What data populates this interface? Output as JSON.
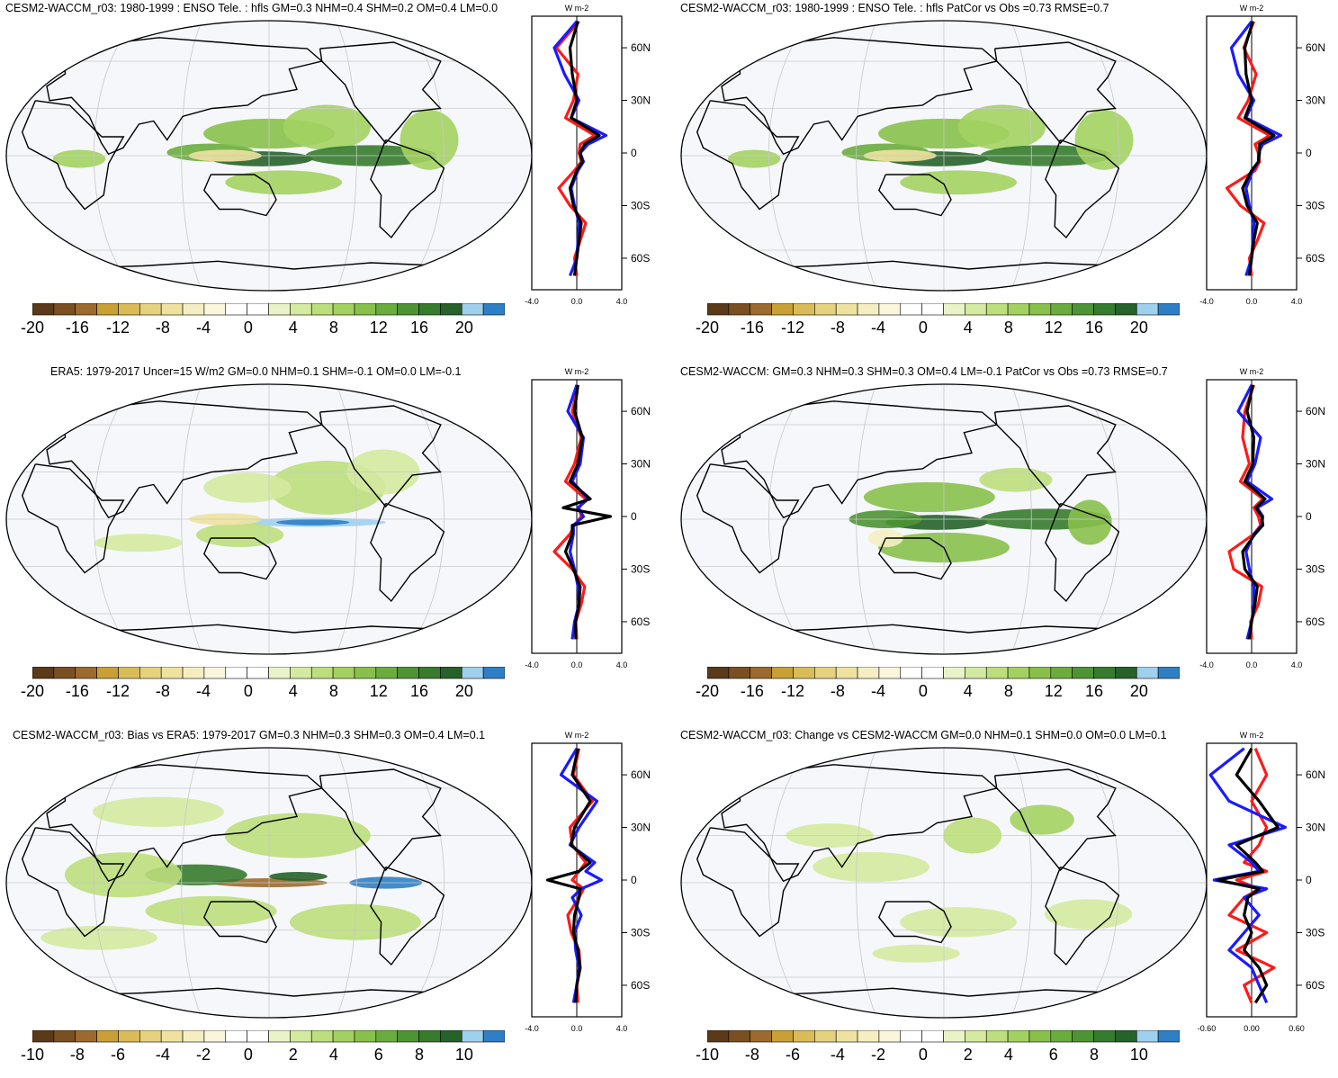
{
  "colors": {
    "brown_to_blue_ramp": [
      "#5b3a1a",
      "#7a4f22",
      "#9c6a2e",
      "#c8a035",
      "#d9bc58",
      "#e6d27e",
      "#efe2a0",
      "#f5eec2",
      "#faf6de",
      "#ffffff",
      "#ffffff",
      "#e9f3c8",
      "#d4eaa0",
      "#bcde7c",
      "#a3d161",
      "#88c04b",
      "#6aac3e",
      "#4e9434",
      "#377b2e",
      "#266229",
      "#9fd0ee",
      "#2f7fc6"
    ],
    "ocean": "#f6f7fb",
    "coast": "#000000",
    "grid": "#c8c8c8",
    "series_red": "#ff1a1a",
    "series_blue": "#1a1aff",
    "series_black": "#000000"
  },
  "units_label": "W m-2",
  "panels": [
    {
      "id": "p1",
      "title": "CESM2-WACCM_r03: 1980-1999 : ENSO Tele. : hfls GM=0.3 NHM=0.4 SHM=0.2 OM=0.4 LM=0.0",
      "colorbar_labels": [
        "-20",
        "-16",
        "-12",
        "-8",
        "-4",
        "0",
        "4",
        "8",
        "12",
        "16",
        "20"
      ],
      "profile_x_ticks": [
        "-4.0",
        "0.0",
        "4.0"
      ],
      "profile_x_range": [
        -4,
        4
      ],
      "lat_ticks": [
        "60N",
        "30N",
        "0",
        "30S",
        "60S"
      ]
    },
    {
      "id": "p2",
      "title": "CESM2-WACCM_r03: 1980-1999 : ENSO Tele. : hfls PatCor vs Obs =0.73 RMSE=0.7",
      "colorbar_labels": [
        "-20",
        "-16",
        "-12",
        "-8",
        "-4",
        "0",
        "4",
        "8",
        "12",
        "16",
        "20"
      ],
      "profile_x_ticks": [
        "-4.0",
        "0.0",
        "4.0"
      ],
      "profile_x_range": [
        -4,
        4
      ],
      "lat_ticks": [
        "60N",
        "30N",
        "0",
        "30S",
        "60S"
      ]
    },
    {
      "id": "p3",
      "title": "ERA5: 1979-2017 Uncer=15 W/m2 GM=0.0 NHM=0.1 SHM=-0.1 OM=0.0 LM=-0.1",
      "colorbar_labels": [
        "-20",
        "-16",
        "-12",
        "-8",
        "-4",
        "0",
        "4",
        "8",
        "12",
        "16",
        "20"
      ],
      "profile_x_ticks": [
        "-4.0",
        "0.0",
        "4.0"
      ],
      "profile_x_range": [
        -4,
        4
      ],
      "lat_ticks": [
        "60N",
        "30N",
        "0",
        "30S",
        "60S"
      ]
    },
    {
      "id": "p4",
      "title": "CESM2-WACCM: GM=0.3 NHM=0.3 SHM=0.3 OM=0.4 LM=-0.1 PatCor vs Obs =0.73 RMSE=0.7",
      "colorbar_labels": [
        "-20",
        "-16",
        "-12",
        "-8",
        "-4",
        "0",
        "4",
        "8",
        "12",
        "16",
        "20"
      ],
      "profile_x_ticks": [
        "-4.0",
        "0.0",
        "4.0"
      ],
      "profile_x_range": [
        -4,
        4
      ],
      "lat_ticks": [
        "60N",
        "30N",
        "0",
        "30S",
        "60S"
      ]
    },
    {
      "id": "p5",
      "title": "CESM2-WACCM_r03: Bias vs ERA5: 1979-2017 GM=0.3 NHM=0.3 SHM=0.3 OM=0.4 LM=0.1",
      "colorbar_labels": [
        "-10",
        "-8",
        "-6",
        "-4",
        "-2",
        "0",
        "2",
        "4",
        "6",
        "8",
        "10"
      ],
      "profile_x_ticks": [
        "-4.0",
        "0.0",
        "4.0"
      ],
      "profile_x_range": [
        -4,
        4
      ],
      "lat_ticks": [
        "60N",
        "30N",
        "0",
        "30S",
        "60S"
      ]
    },
    {
      "id": "p6",
      "title": "CESM2-WACCM_r03: Change vs CESM2-WACCM GM=0.0 NHM=0.1 SHM=0.0 OM=0.0 LM=0.1",
      "colorbar_labels": [
        "-10",
        "-8",
        "-6",
        "-4",
        "-2",
        "0",
        "2",
        "4",
        "6",
        "8",
        "10"
      ],
      "profile_x_ticks": [
        "-0.60",
        "0.00",
        "0.60"
      ],
      "profile_x_range": [
        -0.6,
        0.6
      ],
      "lat_ticks": [
        "60N",
        "30N",
        "0",
        "30S",
        "60S"
      ]
    }
  ],
  "chart_data": [
    {
      "type": "line",
      "panel": "p1",
      "title": "",
      "xlabel": "W m-2",
      "ylabel": "",
      "xlim": [
        -4,
        4
      ],
      "ylim": [
        -78,
        78
      ],
      "y": [
        75,
        60,
        45,
        30,
        20,
        10,
        5,
        0,
        -5,
        -10,
        -20,
        -30,
        -40,
        -50,
        -60,
        -70
      ],
      "series": [
        {
          "values": [
            0.2,
            -1.8,
            0.1,
            -0.3,
            -1.0,
            1.6,
            0.3,
            0.2,
            0.4,
            -0.2,
            -1.6,
            -0.6,
            0.8,
            0.3,
            -0.2,
            0.0
          ]
        },
        {
          "values": [
            0.0,
            -2.0,
            -1.1,
            0.2,
            -0.5,
            2.6,
            1.0,
            0.3,
            0.6,
            0.1,
            -0.5,
            -0.2,
            0.2,
            0.1,
            0.0,
            -0.6
          ]
        },
        {
          "values": [
            0.1,
            -0.6,
            -0.4,
            0.0,
            -0.5,
            2.0,
            0.7,
            0.3,
            0.5,
            0.0,
            -0.6,
            -0.3,
            0.4,
            0.2,
            0.0,
            -0.2
          ]
        }
      ]
    },
    {
      "type": "line",
      "panel": "p2",
      "title": "",
      "xlabel": "W m-2",
      "ylabel": "",
      "xlim": [
        -4,
        4
      ],
      "ylim": [
        -78,
        78
      ],
      "y": [
        75,
        60,
        45,
        30,
        20,
        10,
        5,
        0,
        -5,
        -10,
        -20,
        -30,
        -40,
        -50,
        -60,
        -70
      ],
      "series": [
        {
          "values": [
            0.2,
            -0.7,
            0.4,
            -0.3,
            -1.2,
            1.6,
            0.3,
            0.6,
            0.7,
            0.3,
            -2.2,
            -1.0,
            1.1,
            0.5,
            -0.2,
            0.0
          ]
        },
        {
          "values": [
            0.0,
            -1.8,
            -1.2,
            0.2,
            -0.5,
            2.6,
            1.0,
            0.6,
            0.6,
            0.1,
            -0.5,
            -0.2,
            0.2,
            0.1,
            0.0,
            -0.5
          ]
        },
        {
          "values": [
            0.1,
            -0.6,
            -0.5,
            0.0,
            -0.6,
            2.0,
            0.7,
            0.7,
            0.6,
            0.0,
            -0.8,
            -0.4,
            0.5,
            0.2,
            0.0,
            -0.2
          ]
        }
      ]
    },
    {
      "type": "line",
      "panel": "p3",
      "title": "",
      "xlabel": "W m-2",
      "ylabel": "",
      "xlim": [
        -4,
        4
      ],
      "ylim": [
        -78,
        78
      ],
      "y": [
        75,
        60,
        45,
        30,
        20,
        10,
        5,
        0,
        -5,
        -10,
        -20,
        -30,
        -40,
        -50,
        -60,
        -70
      ],
      "series": [
        {
          "values": [
            0.1,
            -0.4,
            0.4,
            -0.2,
            -1.0,
            0.8,
            0.2,
            0.4,
            -0.2,
            -0.6,
            -2.0,
            -0.4,
            0.7,
            0.4,
            -0.1,
            0.0
          ]
        },
        {
          "values": [
            0.0,
            -0.8,
            0.6,
            0.3,
            -0.4,
            1.0,
            0.1,
            0.6,
            -0.3,
            -0.3,
            -0.6,
            -0.2,
            0.1,
            0.2,
            -0.2,
            -0.4
          ]
        },
        {
          "values": [
            0.1,
            -0.2,
            0.5,
            0.1,
            -0.6,
            1.2,
            -1.2,
            3.0,
            -0.4,
            -0.4,
            -1.0,
            -0.3,
            0.3,
            0.2,
            -0.1,
            -0.1
          ]
        }
      ]
    },
    {
      "type": "line",
      "panel": "p4",
      "title": "",
      "xlabel": "W m-2",
      "ylabel": "",
      "xlim": [
        -4,
        4
      ],
      "ylim": [
        -78,
        78
      ],
      "y": [
        75,
        60,
        45,
        30,
        20,
        10,
        5,
        0,
        -5,
        -10,
        -20,
        -30,
        -40,
        -50,
        -60,
        -70
      ],
      "series": [
        {
          "values": [
            0.2,
            -0.6,
            -0.8,
            -0.2,
            -1.0,
            1.0,
            0.2,
            0.6,
            0.8,
            0.2,
            -2.0,
            -1.6,
            0.9,
            0.6,
            -0.1,
            0.0
          ]
        },
        {
          "values": [
            0.0,
            -1.2,
            0.8,
            0.3,
            -0.4,
            1.8,
            0.5,
            1.0,
            0.9,
            0.2,
            -0.5,
            -0.2,
            0.2,
            0.2,
            0.0,
            -0.4
          ]
        },
        {
          "values": [
            0.1,
            -0.4,
            0.2,
            0.1,
            -0.6,
            1.2,
            0.4,
            0.9,
            1.0,
            0.3,
            -0.8,
            -0.6,
            0.5,
            0.3,
            0.0,
            -0.2
          ]
        }
      ]
    },
    {
      "type": "line",
      "panel": "p5",
      "title": "",
      "xlabel": "W m-2",
      "ylabel": "",
      "xlim": [
        -4,
        4
      ],
      "ylim": [
        -78,
        78
      ],
      "y": [
        75,
        60,
        45,
        30,
        20,
        10,
        5,
        0,
        -5,
        -10,
        -20,
        -30,
        -40,
        -50,
        -60,
        -70
      ],
      "series": [
        {
          "values": [
            0.2,
            -0.3,
            1.4,
            -0.6,
            -0.4,
            0.8,
            0.2,
            -0.4,
            0.6,
            0.2,
            -0.8,
            -0.5,
            0.2,
            0.3,
            0.0,
            0.1
          ]
        },
        {
          "values": [
            0.0,
            -1.4,
            1.8,
            0.2,
            -0.6,
            1.6,
            0.8,
            2.2,
            0.4,
            -0.4,
            0.4,
            -0.2,
            -0.1,
            0.2,
            0.0,
            -0.3
          ]
        },
        {
          "values": [
            0.1,
            -0.4,
            1.2,
            -0.2,
            -0.5,
            1.2,
            0.2,
            -2.6,
            0.3,
            0.2,
            -0.2,
            -0.3,
            0.1,
            0.3,
            0.0,
            -0.1
          ]
        }
      ]
    },
    {
      "type": "line",
      "panel": "p6",
      "title": "",
      "xlabel": "W m-2",
      "ylabel": "",
      "xlim": [
        -0.6,
        0.6
      ],
      "ylim": [
        -78,
        78
      ],
      "y": [
        75,
        60,
        45,
        30,
        20,
        10,
        5,
        0,
        -5,
        -10,
        -20,
        -30,
        -40,
        -50,
        -60,
        -70
      ],
      "series": [
        {
          "values": [
            0.05,
            0.2,
            0.0,
            0.2,
            0.1,
            -0.1,
            0.2,
            -0.2,
            0.1,
            -0.1,
            -0.3,
            0.2,
            -0.2,
            0.3,
            -0.1,
            0.0
          ]
        },
        {
          "values": [
            -0.1,
            -0.55,
            -0.3,
            0.45,
            -0.3,
            0.0,
            0.1,
            -0.5,
            0.2,
            -0.1,
            0.1,
            -0.1,
            -0.3,
            0.0,
            0.1,
            0.2
          ]
        },
        {
          "values": [
            0.0,
            -0.2,
            0.1,
            0.35,
            -0.2,
            0.05,
            0.15,
            -0.45,
            0.1,
            -0.05,
            -0.1,
            0.0,
            -0.1,
            0.1,
            0.2,
            0.05
          ]
        }
      ]
    }
  ]
}
